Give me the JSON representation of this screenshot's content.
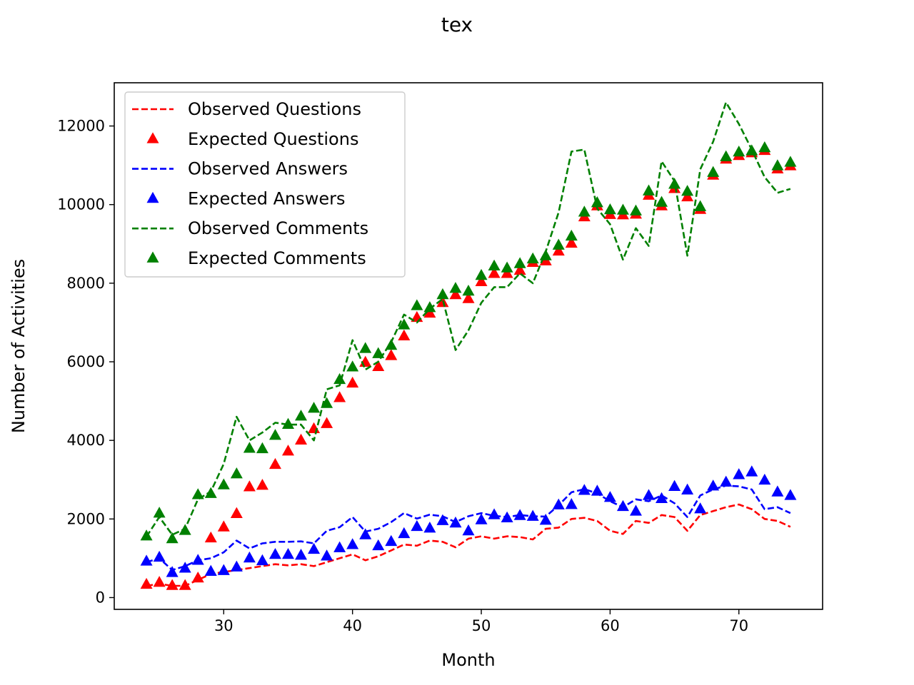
{
  "chart_data": {
    "type": "line",
    "title": "tex",
    "xlabel": "Month",
    "ylabel": "Number of Activities",
    "xlim": [
      21.5,
      76.5
    ],
    "ylim": [
      -300,
      13100
    ],
    "xticks": [
      30,
      40,
      50,
      60,
      70
    ],
    "yticks": [
      0,
      2000,
      4000,
      6000,
      8000,
      10000,
      12000
    ],
    "legend_placement": "top-left",
    "grid": false,
    "x": [
      24,
      25,
      26,
      27,
      28,
      29,
      30,
      31,
      32,
      33,
      34,
      35,
      36,
      37,
      38,
      39,
      40,
      41,
      42,
      43,
      44,
      45,
      46,
      47,
      48,
      49,
      50,
      51,
      52,
      53,
      54,
      55,
      56,
      57,
      58,
      59,
      60,
      61,
      62,
      63,
      64,
      65,
      66,
      67,
      68,
      69,
      70,
      71,
      72,
      73,
      74
    ],
    "series": [
      {
        "name": "Observed Questions",
        "style": "dashed-line",
        "color": "#ff0000",
        "values": [
          300,
          350,
          300,
          300,
          450,
          600,
          650,
          700,
          750,
          800,
          850,
          820,
          850,
          800,
          900,
          1000,
          1100,
          950,
          1050,
          1200,
          1350,
          1320,
          1450,
          1420,
          1280,
          1500,
          1560,
          1500,
          1560,
          1540,
          1480,
          1750,
          1780,
          2000,
          2030,
          1950,
          1700,
          1620,
          1950,
          1900,
          2100,
          2050,
          1700,
          2100,
          2200,
          2300,
          2370,
          2250,
          2000,
          1950,
          1800
        ]
      },
      {
        "name": "Expected Questions",
        "style": "triangle-marker",
        "color": "#ff0000",
        "values": [
          330,
          380,
          300,
          300,
          490,
          1510,
          1790,
          2130,
          2810,
          2850,
          3380,
          3720,
          4000,
          4290,
          4420,
          5080,
          5450,
          5980,
          5870,
          6150,
          6650,
          7120,
          7230,
          7500,
          7700,
          7600,
          8030,
          8240,
          8240,
          8320,
          8520,
          8560,
          8810,
          9010,
          9680,
          9960,
          9740,
          9730,
          9750,
          10230,
          9960,
          10400,
          10190,
          9870,
          10740,
          11150,
          11240,
          11310,
          11370,
          10900,
          10980
        ]
      },
      {
        "name": "Observed Answers",
        "style": "dashed-line",
        "color": "#0000ff",
        "values": [
          900,
          1000,
          700,
          800,
          950,
          1000,
          1150,
          1450,
          1250,
          1380,
          1420,
          1420,
          1430,
          1380,
          1700,
          1790,
          2050,
          1680,
          1750,
          1920,
          2150,
          2010,
          2110,
          2070,
          1920,
          2070,
          2150,
          2080,
          2050,
          2100,
          2070,
          2060,
          2350,
          2680,
          2760,
          2650,
          2450,
          2300,
          2500,
          2450,
          2600,
          2400,
          2050,
          2600,
          2750,
          2850,
          2830,
          2750,
          2250,
          2300,
          2150
        ]
      },
      {
        "name": "Expected Answers",
        "style": "triangle-marker",
        "color": "#0000ff",
        "values": [
          920,
          1020,
          630,
          740,
          940,
          660,
          680,
          770,
          1000,
          930,
          1090,
          1090,
          1070,
          1220,
          1050,
          1260,
          1340,
          1590,
          1310,
          1420,
          1620,
          1800,
          1760,
          1950,
          1890,
          1690,
          1970,
          2100,
          2020,
          2080,
          2060,
          1960,
          2350,
          2360,
          2720,
          2700,
          2540,
          2310,
          2190,
          2590,
          2510,
          2820,
          2730,
          2250,
          2830,
          2930,
          3120,
          3190,
          2980,
          2680,
          2590
        ]
      },
      {
        "name": "Observed Comments",
        "style": "dashed-line",
        "color": "#008000",
        "values": [
          1550,
          2050,
          1600,
          1750,
          2500,
          2700,
          3400,
          4600,
          4000,
          4200,
          4450,
          4400,
          4400,
          4000,
          5300,
          5400,
          6550,
          5800,
          6000,
          6500,
          7200,
          7000,
          7350,
          7600,
          6300,
          6800,
          7500,
          7900,
          7900,
          8250,
          8000,
          8800,
          9800,
          11350,
          11400,
          9900,
          9500,
          8600,
          9400,
          8950,
          11100,
          10600,
          8700,
          10900,
          11600,
          12600,
          12050,
          11400,
          10700,
          10300,
          10400
        ]
      },
      {
        "name": "Expected Comments",
        "style": "triangle-marker",
        "color": "#008000",
        "values": [
          1560,
          2140,
          1490,
          1700,
          2610,
          2640,
          2860,
          3140,
          3790,
          3780,
          4120,
          4400,
          4610,
          4810,
          4930,
          5540,
          5860,
          6330,
          6200,
          6410,
          6930,
          7420,
          7370,
          7700,
          7860,
          7790,
          8190,
          8430,
          8380,
          8490,
          8610,
          8690,
          8960,
          9190,
          9800,
          10040,
          9860,
          9850,
          9830,
          10340,
          10050,
          10510,
          10330,
          9940,
          10810,
          11210,
          11330,
          11360,
          11440,
          10980,
          11070
        ]
      }
    ]
  }
}
